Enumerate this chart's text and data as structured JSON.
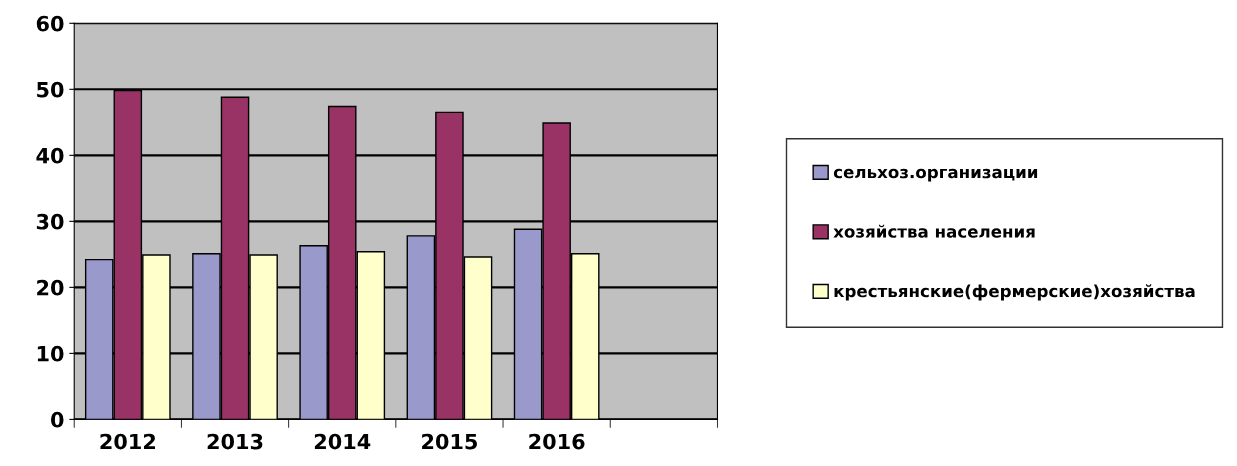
{
  "chart_data": {
    "type": "bar",
    "categories": [
      "2012",
      "2013",
      "2014",
      "2015",
      "2016",
      null
    ],
    "series": [
      {
        "name": "сельхоз.организации",
        "color": "#9999cc",
        "values": [
          24.2,
          25.1,
          26.3,
          27.8,
          28.8,
          null
        ]
      },
      {
        "name": "хозяйства населения",
        "color": "#993366",
        "values": [
          49.8,
          48.8,
          47.4,
          46.5,
          44.9,
          null
        ]
      },
      {
        "name": "крестьянские(фермерские)хозяйства",
        "color": "#ffffcc",
        "values": [
          24.9,
          24.9,
          25.4,
          24.6,
          25.1,
          null
        ]
      }
    ],
    "ylim": [
      0,
      60
    ],
    "yticks": [
      0,
      10,
      20,
      30,
      40,
      50,
      60
    ],
    "grid": "y",
    "legend": "right"
  }
}
